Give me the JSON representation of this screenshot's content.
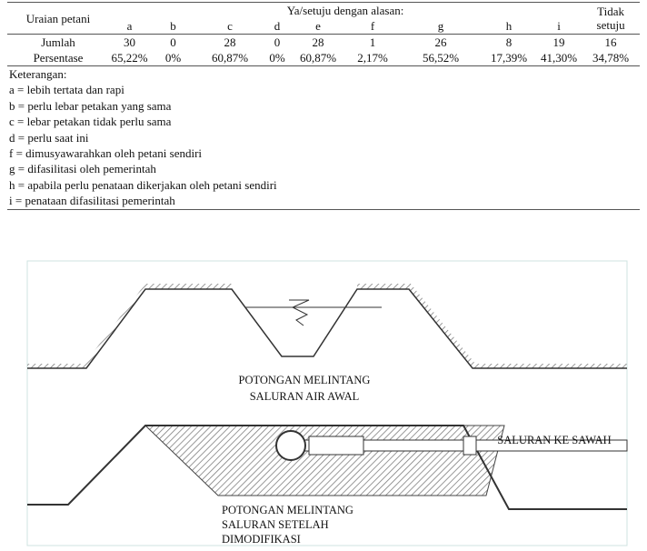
{
  "table": {
    "header": {
      "row_label": "Uraian petani",
      "group": "Ya/setuju dengan alasan:",
      "last": "Tidak setuju",
      "columns": [
        "a",
        "b",
        "c",
        "d",
        "e",
        "f",
        "g",
        "h",
        "i"
      ]
    },
    "rows": [
      {
        "label": "Jumlah",
        "cells": [
          "30",
          "0",
          "28",
          "0",
          "28",
          "1",
          "26",
          "8",
          "19",
          "16"
        ]
      },
      {
        "label": "Persentase",
        "cells": [
          "65,22%",
          "0%",
          "60,87%",
          "0%",
          "60,87%",
          "2,17%",
          "56,52%",
          "17,39%",
          "41,30%",
          "34,78%"
        ]
      }
    ],
    "notes": [
      "Keterangan:",
      "a = lebih tertata dan rapi",
      "b = perlu lebar petakan yang sama",
      "c = lebar petakan tidak perlu sama",
      "d = perlu saat ini",
      "f  = dimusyawarahkan oleh petani sendiri",
      "g = difasilitasi oleh pemerintah",
      "h = apabila perlu penataan dikerjakan oleh petani sendiri",
      "i  = penataan difasilitasi pemerintah"
    ]
  },
  "diagram": {
    "label_top": [
      "POTONGAN MELINTANG",
      "SALURAN AIR AWAL"
    ],
    "label_pipe": "SALURAN KE SAWAH",
    "label_bottom": [
      "POTONGAN MELINTANG",
      "SALURAN SETELAH",
      "DIMODIFIKASI"
    ]
  }
}
